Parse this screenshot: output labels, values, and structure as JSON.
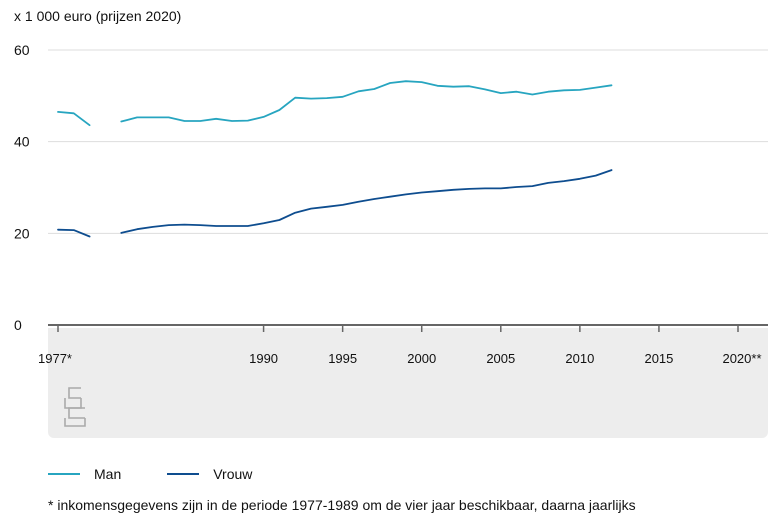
{
  "chart_data": {
    "type": "line",
    "unit_label": "x 1 000 euro (prijzen 2020)",
    "ylim": [
      0,
      60
    ],
    "yticks": [
      0,
      20,
      40,
      60
    ],
    "xlim": [
      1977,
      2020
    ],
    "xticks": [
      {
        "value": 1977,
        "label": "1977*"
      },
      {
        "value": 1990,
        "label": "1990"
      },
      {
        "value": 1995,
        "label": "1995"
      },
      {
        "value": 2000,
        "label": "2000"
      },
      {
        "value": 2005,
        "label": "2005"
      },
      {
        "value": 2010,
        "label": "2010"
      },
      {
        "value": 2015,
        "label": "2015"
      },
      {
        "value": 2020,
        "label": "2020**"
      }
    ],
    "grid": true,
    "legend_position": "bottom-left",
    "series": [
      {
        "name": "Man",
        "color": "#27a5c0",
        "segments": [
          [
            [
              1977,
              46.5
            ],
            [
              1978,
              46.2
            ],
            [
              1979,
              43.6
            ]
          ],
          [
            [
              1981,
              44.4
            ],
            [
              1982,
              45.3
            ],
            [
              1983,
              45.3
            ],
            [
              1984,
              45.3
            ],
            [
              1985,
              44.5
            ],
            [
              1986,
              44.5
            ],
            [
              1987,
              45.0
            ],
            [
              1988,
              44.5
            ],
            [
              1989,
              44.6
            ],
            [
              1990,
              45.4
            ],
            [
              1991,
              46.9
            ],
            [
              1992,
              49.6
            ],
            [
              1993,
              49.4
            ],
            [
              1994,
              49.5
            ],
            [
              1995,
              49.8
            ],
            [
              1996,
              51.0
            ],
            [
              1997,
              51.5
            ],
            [
              1998,
              52.8
            ],
            [
              1999,
              53.2
            ],
            [
              2000,
              53.0
            ],
            [
              2001,
              52.2
            ],
            [
              2002,
              52.0
            ],
            [
              2003,
              52.1
            ],
            [
              2004,
              51.4
            ],
            [
              2005,
              50.6
            ],
            [
              2006,
              50.9
            ],
            [
              2007,
              50.3
            ],
            [
              2008,
              50.9
            ],
            [
              2009,
              51.2
            ],
            [
              2010,
              51.3
            ],
            [
              2011,
              51.8
            ],
            [
              2012,
              52.3
            ]
          ]
        ]
      },
      {
        "name": "Vrouw",
        "color": "#0e4d8f",
        "segments": [
          [
            [
              1977,
              20.8
            ],
            [
              1978,
              20.7
            ],
            [
              1979,
              19.3
            ]
          ],
          [
            [
              1981,
              20.1
            ],
            [
              1982,
              20.9
            ],
            [
              1983,
              21.4
            ],
            [
              1984,
              21.8
            ],
            [
              1985,
              21.9
            ],
            [
              1986,
              21.8
            ],
            [
              1987,
              21.6
            ],
            [
              1988,
              21.6
            ],
            [
              1989,
              21.6
            ],
            [
              1990,
              22.2
            ],
            [
              1991,
              22.9
            ],
            [
              1992,
              24.5
            ],
            [
              1993,
              25.4
            ],
            [
              1994,
              25.8
            ],
            [
              1995,
              26.2
            ],
            [
              1996,
              26.9
            ],
            [
              1997,
              27.5
            ],
            [
              1998,
              28.0
            ],
            [
              1999,
              28.5
            ],
            [
              2000,
              28.9
            ],
            [
              2001,
              29.2
            ],
            [
              2002,
              29.5
            ],
            [
              2003,
              29.7
            ],
            [
              2004,
              29.8
            ],
            [
              2005,
              29.8
            ],
            [
              2006,
              30.1
            ],
            [
              2007,
              30.3
            ],
            [
              2008,
              31.0
            ],
            [
              2009,
              31.4
            ],
            [
              2010,
              31.9
            ],
            [
              2011,
              32.6
            ],
            [
              2012,
              33.8
            ]
          ]
        ]
      }
    ],
    "footnote": "* inkomensgegevens zijn in de periode 1977-1989 om de vier jaar beschikbaar, daarna jaarlijks",
    "colors": {
      "grid": "#dddddd",
      "axis": "#666666",
      "panel": "#ededed",
      "text": "#111111"
    },
    "logo_icon": "cbs-logo-icon"
  }
}
